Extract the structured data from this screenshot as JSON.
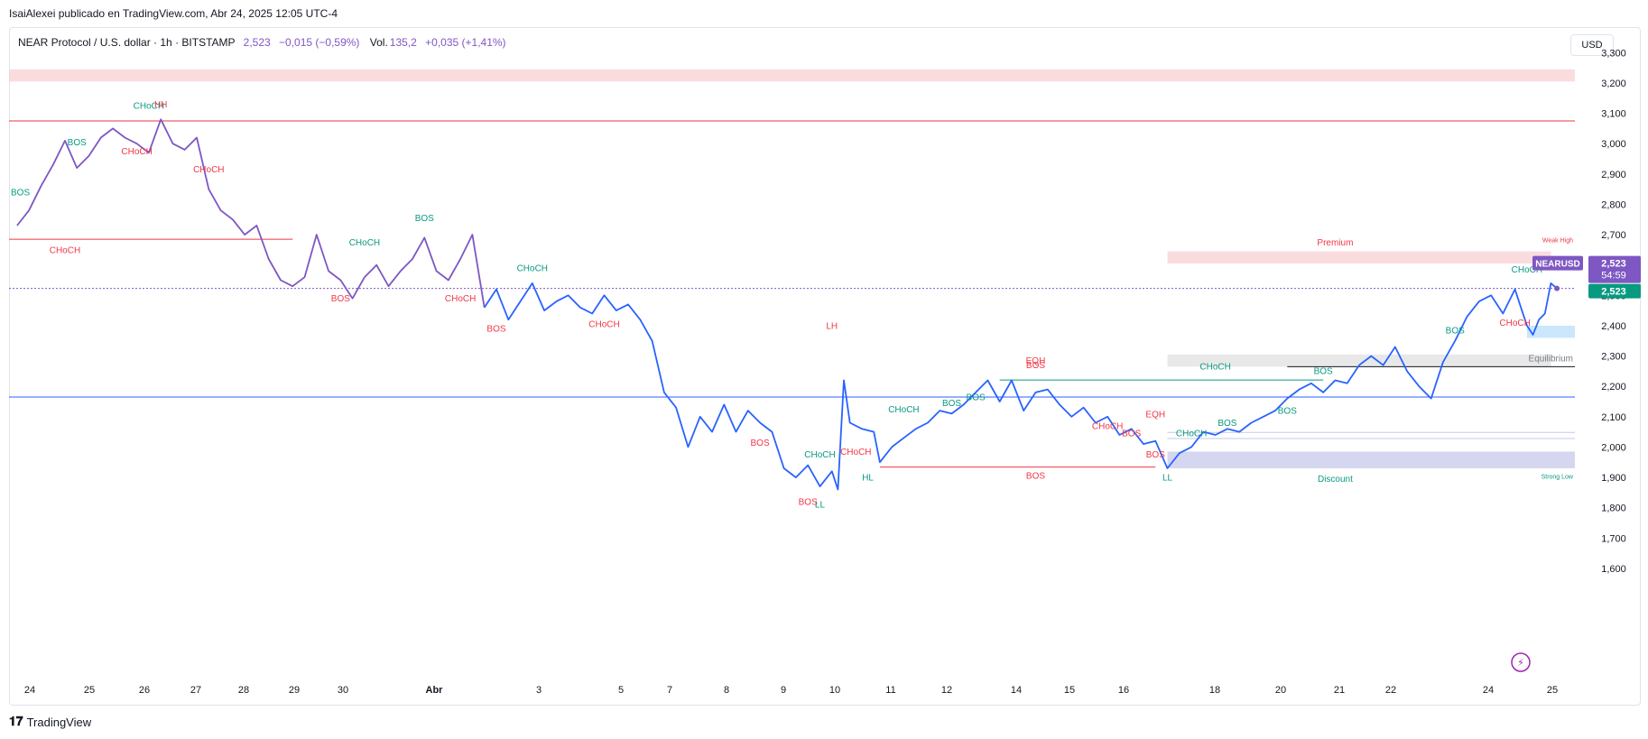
{
  "header": {
    "publisher": "IsaiAlexei publicado en TradingView.com, Abr 24, 2025 12:05 UTC-4"
  },
  "legend": {
    "symbol": "NEAR Protocol / U.S. dollar · 1h · BITSTAMP",
    "price": "2,523",
    "change": "−0,015 (−0,59%)",
    "volume_label": "Vol.",
    "volume": "135,2",
    "volume_change": "+0,035 (+1,41%)"
  },
  "currency_button": "USD",
  "footer": {
    "brand": "TradingView",
    "brand_icon": "tradingview-logo-icon"
  },
  "price_badge": {
    "symbol": "NEARUSD",
    "price": "2,523",
    "countdown": "54:59",
    "last": "2,523"
  },
  "colors": {
    "price_line_purple": "#7e57c2",
    "price_line_blue": "#2962ff",
    "bullish": "#089981",
    "bearish": "#f23645",
    "premium_zone": "#f9d0d3",
    "discount_zone": "#c5cae9",
    "equilibrium_zone": "#d9d9d9"
  },
  "chart_data": {
    "type": "line",
    "symbol": "NEARUSD",
    "timeframe": "1h",
    "x_ticks": [
      "24",
      "25",
      "26",
      "27",
      "28",
      "29",
      "30",
      "Abr",
      "3",
      "5",
      "7",
      "8",
      "9",
      "10",
      "11",
      "12",
      "14",
      "15",
      "16",
      "18",
      "20",
      "21",
      "22",
      "24",
      "25"
    ],
    "y_ticks": [
      "3,300",
      "3,200",
      "3,100",
      "3,000",
      "2,900",
      "2,800",
      "2,700",
      "2,600",
      "2,500",
      "2,400",
      "2,300",
      "2,200",
      "2,100",
      "2,000",
      "1,900",
      "1,800",
      "1,700",
      "1,600"
    ],
    "y_range": [
      1.57,
      3.31
    ],
    "x_range": [
      "Mar 23 20:00",
      "Apr 25 12:00"
    ],
    "last_price": 2.523,
    "series": [
      {
        "color": "#7e57c2",
        "segment": "purple",
        "points": [
          [
            "Mar 24 00:00",
            2.73
          ],
          [
            "Mar 24 06:00",
            2.78
          ],
          [
            "Mar 24 12:00",
            2.86
          ],
          [
            "Mar 24 18:00",
            2.93
          ],
          [
            "Mar 25 00:00",
            3.01
          ],
          [
            "Mar 25 06:00",
            2.92
          ],
          [
            "Mar 25 12:00",
            2.96
          ],
          [
            "Mar 25 18:00",
            3.02
          ],
          [
            "Mar 26 00:00",
            3.05
          ],
          [
            "Mar 26 06:00",
            3.02
          ],
          [
            "Mar 26 12:00",
            3.0
          ],
          [
            "Mar 26 18:00",
            2.97
          ],
          [
            "Mar 27 00:00",
            3.08
          ],
          [
            "Mar 27 06:00",
            3.0
          ],
          [
            "Mar 27 12:00",
            2.98
          ],
          [
            "Mar 27 18:00",
            3.02
          ],
          [
            "Mar 28 00:00",
            2.85
          ],
          [
            "Mar 28 06:00",
            2.78
          ],
          [
            "Mar 28 12:00",
            2.75
          ],
          [
            "Mar 28 18:00",
            2.7
          ],
          [
            "Mar 29 00:00",
            2.73
          ],
          [
            "Mar 29 06:00",
            2.62
          ],
          [
            "Mar 29 12:00",
            2.55
          ],
          [
            "Mar 29 18:00",
            2.53
          ],
          [
            "Mar 30 00:00",
            2.56
          ],
          [
            "Mar 30 06:00",
            2.7
          ],
          [
            "Mar 30 12:00",
            2.58
          ],
          [
            "Mar 30 18:00",
            2.55
          ],
          [
            "Mar 31 00:00",
            2.49
          ],
          [
            "Mar 31 06:00",
            2.56
          ],
          [
            "Mar 31 12:00",
            2.6
          ],
          [
            "Mar 31 18:00",
            2.53
          ],
          [
            "Apr 01 00:00",
            2.58
          ],
          [
            "Apr 01 06:00",
            2.62
          ],
          [
            "Apr 01 12:00",
            2.69
          ],
          [
            "Apr 01 18:00",
            2.58
          ],
          [
            "Apr 02 00:00",
            2.55
          ],
          [
            "Apr 02 06:00",
            2.62
          ],
          [
            "Apr 02 12:00",
            2.7
          ],
          [
            "Apr 02 18:00",
            2.46
          ]
        ]
      },
      {
        "color": "#2962ff",
        "segment": "blue",
        "points": [
          [
            "Apr 02 18:00",
            2.46
          ],
          [
            "Apr 03 00:00",
            2.52
          ],
          [
            "Apr 03 06:00",
            2.42
          ],
          [
            "Apr 03 12:00",
            2.48
          ],
          [
            "Apr 03 18:00",
            2.54
          ],
          [
            "Apr 04 00:00",
            2.45
          ],
          [
            "Apr 04 06:00",
            2.48
          ],
          [
            "Apr 04 12:00",
            2.5
          ],
          [
            "Apr 04 18:00",
            2.46
          ],
          [
            "Apr 05 00:00",
            2.44
          ],
          [
            "Apr 05 06:00",
            2.5
          ],
          [
            "Apr 05 12:00",
            2.45
          ],
          [
            "Apr 05 18:00",
            2.47
          ],
          [
            "Apr 06 00:00",
            2.42
          ],
          [
            "Apr 06 06:00",
            2.35
          ],
          [
            "Apr 06 12:00",
            2.18
          ],
          [
            "Apr 06 18:00",
            2.13
          ],
          [
            "Apr 07 00:00",
            2.0
          ],
          [
            "Apr 07 06:00",
            2.1
          ],
          [
            "Apr 07 12:00",
            2.05
          ],
          [
            "Apr 07 18:00",
            2.14
          ],
          [
            "Apr 08 00:00",
            2.05
          ],
          [
            "Apr 08 06:00",
            2.12
          ],
          [
            "Apr 08 12:00",
            2.08
          ],
          [
            "Apr 08 18:00",
            2.05
          ],
          [
            "Apr 09 00:00",
            1.93
          ],
          [
            "Apr 09 06:00",
            1.9
          ],
          [
            "Apr 09 12:00",
            1.94
          ],
          [
            "Apr 09 18:00",
            1.87
          ],
          [
            "Apr 10 00:00",
            1.92
          ],
          [
            "Apr 10 03:00",
            1.86
          ],
          [
            "Apr 10 06:00",
            2.22
          ],
          [
            "Apr 10 09:00",
            2.08
          ],
          [
            "Apr 10 15:00",
            2.06
          ],
          [
            "Apr 10 21:00",
            2.05
          ],
          [
            "Apr 11 00:00",
            1.95
          ],
          [
            "Apr 11 06:00",
            2.0
          ],
          [
            "Apr 11 12:00",
            2.03
          ],
          [
            "Apr 11 18:00",
            2.06
          ],
          [
            "Apr 12 00:00",
            2.08
          ],
          [
            "Apr 12 06:00",
            2.12
          ],
          [
            "Apr 12 12:00",
            2.11
          ],
          [
            "Apr 12 18:00",
            2.14
          ],
          [
            "Apr 13 00:00",
            2.18
          ],
          [
            "Apr 13 06:00",
            2.22
          ],
          [
            "Apr 13 12:00",
            2.15
          ],
          [
            "Apr 13 18:00",
            2.22
          ],
          [
            "Apr 14 00:00",
            2.12
          ],
          [
            "Apr 14 06:00",
            2.18
          ],
          [
            "Apr 14 12:00",
            2.19
          ],
          [
            "Apr 14 18:00",
            2.14
          ],
          [
            "Apr 15 00:00",
            2.1
          ],
          [
            "Apr 15 06:00",
            2.13
          ],
          [
            "Apr 15 12:00",
            2.08
          ],
          [
            "Apr 15 18:00",
            2.1
          ],
          [
            "Apr 16 00:00",
            2.04
          ],
          [
            "Apr 16 06:00",
            2.06
          ],
          [
            "Apr 16 12:00",
            2.01
          ],
          [
            "Apr 16 18:00",
            2.02
          ],
          [
            "Apr 17 00:00",
            1.93
          ],
          [
            "Apr 17 06:00",
            1.98
          ],
          [
            "Apr 17 12:00",
            2.0
          ],
          [
            "Apr 17 18:00",
            2.05
          ],
          [
            "Apr 18 00:00",
            2.04
          ],
          [
            "Apr 18 06:00",
            2.06
          ],
          [
            "Apr 18 12:00",
            2.05
          ],
          [
            "Apr 18 18:00",
            2.08
          ],
          [
            "Apr 19 00:00",
            2.1
          ],
          [
            "Apr 19 06:00",
            2.12
          ],
          [
            "Apr 19 12:00",
            2.16
          ],
          [
            "Apr 19 18:00",
            2.19
          ],
          [
            "Apr 20 00:00",
            2.21
          ],
          [
            "Apr 20 06:00",
            2.18
          ],
          [
            "Apr 20 12:00",
            2.22
          ],
          [
            "Apr 20 18:00",
            2.21
          ],
          [
            "Apr 21 00:00",
            2.27
          ],
          [
            "Apr 21 06:00",
            2.3
          ],
          [
            "Apr 21 12:00",
            2.27
          ],
          [
            "Apr 21 18:00",
            2.33
          ],
          [
            "Apr 22 00:00",
            2.25
          ],
          [
            "Apr 22 06:00",
            2.2
          ],
          [
            "Apr 22 12:00",
            2.16
          ],
          [
            "Apr 22 18:00",
            2.28
          ],
          [
            "Apr 23 00:00",
            2.35
          ],
          [
            "Apr 23 06:00",
            2.43
          ],
          [
            "Apr 23 12:00",
            2.48
          ],
          [
            "Apr 23 18:00",
            2.5
          ],
          [
            "Apr 24 00:00",
            2.44
          ],
          [
            "Apr 24 06:00",
            2.52
          ],
          [
            "Apr 24 09:00",
            2.46
          ],
          [
            "Apr 24 12:00",
            2.4
          ],
          [
            "Apr 24 15:00",
            2.37
          ],
          [
            "Apr 24 18:00",
            2.42
          ],
          [
            "Apr 24 21:00",
            2.44
          ],
          [
            "Apr 25 00:00",
            2.54
          ],
          [
            "Apr 25 03:00",
            2.523
          ]
        ]
      }
    ],
    "horizontal_lines": [
      {
        "y": 3.075,
        "color": "#f23645"
      },
      {
        "y": 2.685,
        "color": "#f23645",
        "to": "Mar 29 18:00"
      },
      {
        "y": 2.523,
        "color": "#7e57c2",
        "style": "dotted"
      },
      {
        "y": 2.165,
        "color": "#2962ff"
      },
      {
        "y": 2.265,
        "color": "#131722",
        "from": "Apr 19 12:00"
      },
      {
        "y": 2.221,
        "color": "#089981",
        "from": "Apr 13 12:00",
        "to": "Apr 20 06:00"
      },
      {
        "y": 1.934,
        "color": "#f23645",
        "from": "Apr 11 00:00",
        "to": "Apr 16 18:00"
      },
      {
        "y": 2.048,
        "color": "#c5cae9",
        "from": "Apr 17 00:00"
      },
      {
        "y": 2.028,
        "color": "#c5cae9",
        "from": "Apr 17 00:00"
      }
    ],
    "zones": [
      {
        "name": "top-supply",
        "y_from": 3.205,
        "y_to": 3.245,
        "color": "#f9d0d3"
      },
      {
        "name": "Premium",
        "y_from": 2.605,
        "y_to": 2.645,
        "color": "#f9d0d3",
        "from": "Apr 17 00:00",
        "to": "Apr 25 00:00"
      },
      {
        "name": "Equilibrium",
        "y_from": 2.265,
        "y_to": 2.305,
        "color": "#e0e0e0",
        "from": "Apr 17 00:00",
        "to": "Apr 25 00:00"
      },
      {
        "name": "Discount",
        "y_from": 1.93,
        "y_to": 1.985,
        "color": "#c5cae9",
        "from": "Apr 17 00:00"
      },
      {
        "name": "ob-1",
        "y_from": 2.36,
        "y_to": 2.4,
        "color": "#bbdefb",
        "from": "Apr 24 12:00"
      }
    ],
    "annotations": [
      {
        "text": "CHoCH",
        "x": "Mar 26 18:00",
        "y": 3.115,
        "color": "#089981"
      },
      {
        "text": "HH",
        "x": "Mar 27 00:00",
        "y": 3.12,
        "color": "#f23645"
      },
      {
        "text": "BOS",
        "x": "Mar 25 06:00",
        "y": 2.995,
        "color": "#089981"
      },
      {
        "text": "CHoCH",
        "x": "Mar 26 12:00",
        "y": 2.965,
        "color": "#f23645"
      },
      {
        "text": "CHoCH",
        "x": "Mar 28 00:00",
        "y": 2.905,
        "color": "#f23645"
      },
      {
        "text": "CHoCH",
        "x": "Mar 25 00:00",
        "y": 2.64,
        "color": "#f23645"
      },
      {
        "text": "CHoCH",
        "x": "Mar 31 06:00",
        "y": 2.665,
        "color": "#089981"
      },
      {
        "text": "BOS",
        "x": "Apr 01 12:00",
        "y": 2.745,
        "color": "#089981"
      },
      {
        "text": "BOS",
        "x": "Mar 30 18:00",
        "y": 2.48,
        "color": "#f23645"
      },
      {
        "text": "CHoCH",
        "x": "Apr 02 06:00",
        "y": 2.48,
        "color": "#f23645"
      },
      {
        "text": "CHoCH",
        "x": "Apr 03 18:00",
        "y": 2.58,
        "color": "#089981"
      },
      {
        "text": "BOS",
        "x": "Apr 03 00:00",
        "y": 2.38,
        "color": "#f23645"
      },
      {
        "text": "CHoCH",
        "x": "Apr 05 06:00",
        "y": 2.395,
        "color": "#f23645"
      },
      {
        "text": "LH",
        "x": "Apr 10 00:00",
        "y": 2.39,
        "color": "#f23645"
      },
      {
        "text": "BOS",
        "x": "Apr 08 12:00",
        "y": 2.005,
        "color": "#f23645"
      },
      {
        "text": "CHoCH",
        "x": "Apr 09 18:00",
        "y": 1.965,
        "color": "#089981"
      },
      {
        "text": "CHoCH",
        "x": "Apr 10 12:00",
        "y": 1.975,
        "color": "#f23645"
      },
      {
        "text": "BOS",
        "x": "Apr 09 12:00",
        "y": 1.81,
        "color": "#f23645"
      },
      {
        "text": "LL",
        "x": "Apr 09 18:00",
        "y": 1.8,
        "color": "#089981"
      },
      {
        "text": "HL",
        "x": "Apr 10 18:00",
        "y": 1.89,
        "color": "#089981"
      },
      {
        "text": "CHoCH",
        "x": "Apr 11 12:00",
        "y": 2.115,
        "color": "#089981"
      },
      {
        "text": "BOS",
        "x": "Apr 12 12:00",
        "y": 2.135,
        "color": "#089981"
      },
      {
        "text": "BOS",
        "x": "Apr 13 00:00",
        "y": 2.155,
        "color": "#089981"
      },
      {
        "text": "EQH",
        "x": "Apr 14 06:00",
        "y": 2.275,
        "color": "#f23645"
      },
      {
        "text": "BOS",
        "x": "Apr 14 06:00",
        "y": 2.26,
        "color": "#f23645"
      },
      {
        "text": "CHoCH",
        "x": "Apr 15 18:00",
        "y": 2.06,
        "color": "#f23645"
      },
      {
        "text": "BOS",
        "x": "Apr 16 06:00",
        "y": 2.035,
        "color": "#f23645"
      },
      {
        "text": "EQH",
        "x": "Apr 16 18:00",
        "y": 2.098,
        "color": "#f23645"
      },
      {
        "text": "BOS",
        "x": "Apr 14 06:00",
        "y": 1.895,
        "color": "#f23645"
      },
      {
        "text": "BOS",
        "x": "Apr 16 18:00",
        "y": 1.965,
        "color": "#f23645"
      },
      {
        "text": "LL",
        "x": "Apr 17 00:00",
        "y": 1.89,
        "color": "#089981"
      },
      {
        "text": "CHoCH",
        "x": "Apr 17 12:00",
        "y": 2.035,
        "color": "#089981"
      },
      {
        "text": "BOS",
        "x": "Apr 18 06:00",
        "y": 2.07,
        "color": "#089981"
      },
      {
        "text": "BOS",
        "x": "Apr 19 12:00",
        "y": 2.11,
        "color": "#089981"
      },
      {
        "text": "CHoCH",
        "x": "Apr 18 00:00",
        "y": 2.255,
        "color": "#089981"
      },
      {
        "text": "BOS",
        "x": "Apr 20 06:00",
        "y": 2.24,
        "color": "#089981"
      },
      {
        "text": "BOS",
        "x": "Apr 23 00:00",
        "y": 2.375,
        "color": "#089981"
      },
      {
        "text": "CHoCH",
        "x": "Apr 24 12:00",
        "y": 2.575,
        "color": "#089981"
      },
      {
        "text": "CHoCH",
        "x": "Apr 24 06:00",
        "y": 2.4,
        "color": "#f23645"
      },
      {
        "text": "Premium",
        "x": "Apr 20 12:00",
        "y": 2.665,
        "color": "#f23645"
      },
      {
        "text": "Equilibrium",
        "x": "Apr 25 21:00",
        "y": 2.283,
        "color": "#787b86"
      },
      {
        "text": "Discount",
        "x": "Apr 20 12:00",
        "y": 1.885,
        "color": "#089981"
      },
      {
        "text": "Weak High",
        "x": "Apr 25 18:00",
        "y": 2.675,
        "color": "#f23645"
      },
      {
        "text": "Strong Low",
        "x": "Apr 25 18:00",
        "y": 1.895,
        "color": "#089981"
      },
      {
        "text": "BOS",
        "x": "Mar 23 20:00",
        "y": 2.83,
        "color": "#089981"
      }
    ]
  }
}
